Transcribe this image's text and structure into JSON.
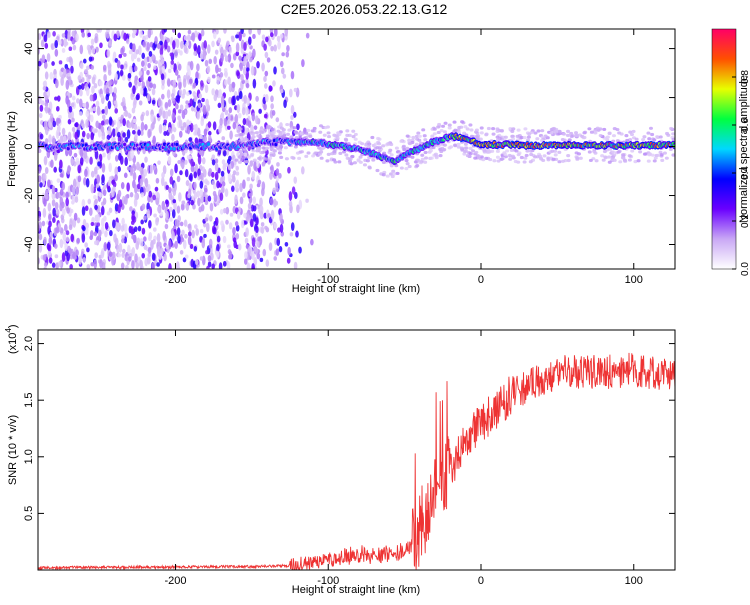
{
  "title": "C2E5.2026.053.22.13.G12",
  "chart_data": [
    {
      "type": "heatmap",
      "xlabel": "Height of straight line (km)",
      "ylabel": "Frequency (Hz)",
      "xlim": [
        -290,
        127
      ],
      "ylim": [
        -50,
        48
      ],
      "xticks": [
        -200,
        -100,
        0,
        100
      ],
      "yticks": [
        -40,
        -20,
        0,
        20,
        40
      ],
      "colorbar": {
        "label": "Normalized spectral amplitude",
        "range": [
          0,
          1
        ],
        "ticks": [
          0.0,
          0.2,
          0.4,
          0.6,
          0.8
        ],
        "tick_labels": [
          "0.0",
          "0.2",
          "0.4",
          "0.6",
          "0.8"
        ],
        "colors": [
          "#ffffff",
          "#c9a8f5",
          "#6a00ff",
          "#0000ff",
          "#00d8ff",
          "#00ff40",
          "#e8ff00",
          "#ff5000",
          "#ff0066"
        ]
      },
      "ridge": {
        "x": [
          -290,
          -160,
          -150,
          -130,
          -110,
          -100,
          -90,
          -80,
          -70,
          -62,
          -55,
          -50,
          -45,
          -40,
          -35,
          -30,
          -25,
          -20,
          -15,
          -10,
          -5,
          0,
          30,
          60,
          127
        ],
        "y": [
          0,
          0,
          1,
          2,
          2,
          1,
          0,
          -1,
          -3,
          -5,
          -6,
          -3,
          -2,
          -1,
          1,
          2,
          3,
          4,
          4,
          3,
          2,
          1,
          0.5,
          0.5,
          0.5
        ]
      },
      "noise_region_x": [
        -290,
        -120
      ]
    },
    {
      "type": "line",
      "xlabel": "Height of straight line (km)",
      "ylabel": "SNR (10 * v/v)",
      "y_multiplier": "(x10",
      "y_multiplier_exp": "4",
      "y_multiplier_close": ")",
      "xlim": [
        -290,
        127
      ],
      "ylim": [
        0,
        2.12
      ],
      "xticks": [
        -200,
        -100,
        0,
        100
      ],
      "yticks": [
        0.5,
        1.0,
        1.5,
        2.0
      ],
      "ytick_labels": [
        "0.5",
        "1.0",
        "1.5",
        "2.0"
      ],
      "color": "#ee3333",
      "envelope": {
        "x": [
          -290,
          -150,
          -125,
          -110,
          -95,
          -80,
          -65,
          -55,
          -45,
          -40,
          -35,
          -30,
          -25,
          -20,
          -15,
          -10,
          -5,
          0,
          10,
          20,
          30,
          40,
          60,
          80,
          100,
          127
        ],
        "y": [
          0.02,
          0.03,
          0.04,
          0.06,
          0.1,
          0.14,
          0.14,
          0.15,
          0.22,
          0.35,
          0.52,
          0.65,
          0.78,
          0.9,
          1.02,
          1.12,
          1.22,
          1.3,
          1.42,
          1.55,
          1.63,
          1.7,
          1.75,
          1.75,
          1.76,
          1.74
        ]
      }
    }
  ]
}
